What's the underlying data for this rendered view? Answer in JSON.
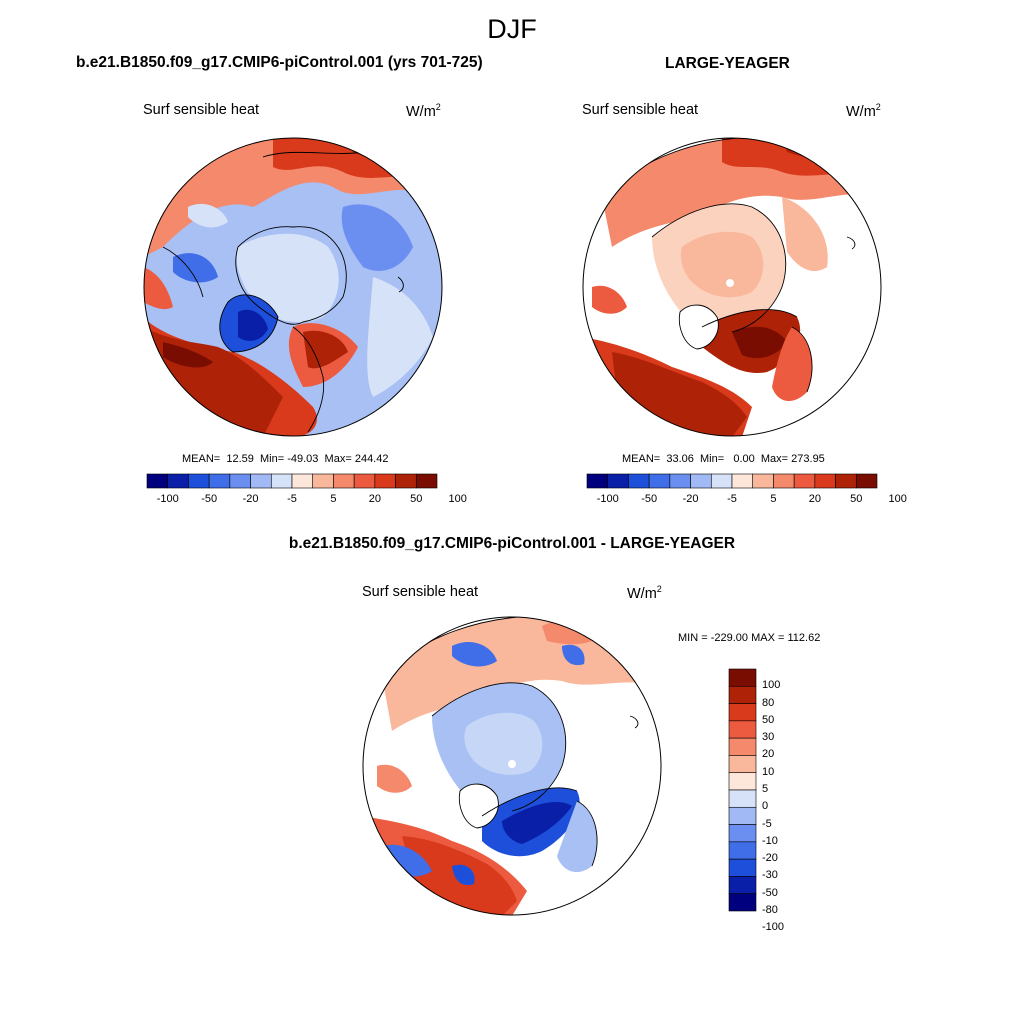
{
  "figure_title": "DJF",
  "panels": [
    {
      "id": "case",
      "title": "b.e21.B1850.f09_g17.CMIP6-piControl.001 (yrs 701-725)",
      "variable": "Surf sensible heat",
      "units": "W/m",
      "units_exp": "2",
      "stats": {
        "mean": "12.59",
        "min": "-49.03",
        "max": "244.42"
      }
    },
    {
      "id": "obs",
      "title": "LARGE-YEAGER",
      "variable": "Surf sensible heat",
      "units": "W/m",
      "units_exp": "2",
      "stats": {
        "mean": "33.06",
        "min": "0.00",
        "max": "273.95"
      }
    },
    {
      "id": "diff",
      "title": "b.e21.B1850.f09_g17.CMIP6-piControl.001 - LARGE-YEAGER",
      "variable": "Surf sensible heat",
      "units": "W/m",
      "units_exp": "2",
      "minmax": {
        "min": "-229.00",
        "max": "112.62"
      }
    }
  ],
  "stat_labels": {
    "mean": "MEAN=",
    "min": "Min=",
    "max": "Max=",
    "min2": "MIN =",
    "max2": "MAX ="
  },
  "colorbar_horizontal": {
    "colors": [
      "#00007f",
      "#0a1fa8",
      "#1d4fdb",
      "#3f6ee8",
      "#6b8ff0",
      "#a1b9f4",
      "#d6e2f8",
      "#fde6da",
      "#f9b79c",
      "#f4896b",
      "#ec5b3f",
      "#d93a1c",
      "#ae2208",
      "#7a0d02"
    ],
    "tick_labels": [
      "-100",
      "-50",
      "-20",
      "-5",
      "5",
      "20",
      "50",
      "100"
    ]
  },
  "colorbar_vertical": {
    "colors": [
      "#7a0d02",
      "#ae2208",
      "#d93a1c",
      "#ec5b3f",
      "#f4896b",
      "#f9b79c",
      "#fde6da",
      "#d6e2f8",
      "#a1b9f4",
      "#6b8ff0",
      "#3f6ee8",
      "#1d4fdb",
      "#0a1fa8",
      "#00007f"
    ],
    "tick_labels": [
      "100",
      "80",
      "50",
      "30",
      "20",
      "10",
      "5",
      "0",
      "-5",
      "-10",
      "-20",
      "-30",
      "-50",
      "-80",
      "-100"
    ]
  },
  "palette": {
    "deep_red": "#a81a06",
    "red": "#d6391c",
    "orange": "#ec6a45",
    "salmon": "#f4a182",
    "peach": "#fad2bd",
    "pale_blue": "#d6e2f8",
    "light_blue": "#a9c0f4",
    "blue": "#7096ee",
    "mid_blue": "#3f6ee8",
    "deep_blue": "#1440c8"
  }
}
